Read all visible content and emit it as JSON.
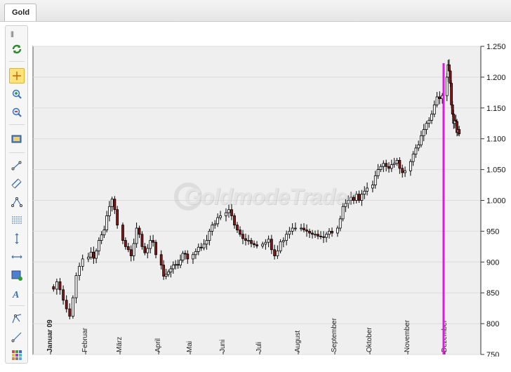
{
  "tab": {
    "label": "Gold"
  },
  "colors": {
    "up": "#ffffff",
    "down": "#8b1414",
    "wick": "#000000",
    "marker": "#e018e0",
    "plot_bg": "#efefef",
    "grid": "#dcdcdc"
  },
  "watermark": {
    "text": "GoldmodeTrader"
  },
  "toolbar": {
    "tools": [
      "refresh-icon",
      "crosshair-icon",
      "zoom-in-icon",
      "zoom-out-icon",
      "screenshot-icon",
      "trendline-icon",
      "channel-icon",
      "triangle-icon",
      "fibonacci-icon",
      "vertical-line-icon",
      "horizontal-line-icon",
      "rectangle-icon",
      "text-icon",
      "pitchfork-icon",
      "ray-icon",
      "palette-icon"
    ],
    "active": "crosshair-icon"
  },
  "chart_data": {
    "type": "candlestick",
    "y_axis": {
      "ticks": [
        "1.250",
        "1.200",
        "1.150",
        "1.100",
        "1.050",
        "1.000",
        "950",
        "900",
        "850",
        "800",
        "750"
      ],
      "position": "right"
    },
    "x_axis": {
      "labels": [
        "Januar 09",
        "Februar",
        "März",
        "April",
        "Mai",
        "Juni",
        "Juli",
        "August",
        "September",
        "Oktober",
        "November",
        "Dezember"
      ],
      "bold_label": "Januar 09"
    },
    "grid": true,
    "marker_line": {
      "x_label": "Dezember"
    },
    "series": [
      {
        "m": 0,
        "close": [
          856,
          868,
          855,
          838,
          824,
          812,
          842,
          878,
          893,
          905
        ]
      },
      {
        "m": 1,
        "close": [
          908,
          916,
          906,
          918,
          935,
          944,
          952,
          975,
          990,
          1002,
          985,
          960
        ]
      },
      {
        "m": 2,
        "close": [
          935,
          925,
          920,
          910,
          930,
          955,
          945,
          925,
          915,
          922,
          935,
          932,
          912
        ]
      },
      {
        "m": 3,
        "close": [
          895,
          877,
          880,
          884,
          889,
          895,
          896,
          895,
          903,
          914,
          913,
          905
        ]
      },
      {
        "m": 4,
        "close": [
          912,
          917,
          924,
          923,
          929,
          935,
          950,
          960,
          962,
          972,
          975
        ]
      },
      {
        "m": 5,
        "close": [
          980,
          985,
          975,
          960,
          952,
          945,
          938,
          935,
          935,
          930,
          928,
          926
        ]
      },
      {
        "m": 6,
        "close": [
          929,
          932,
          937,
          920,
          910,
          918,
          933,
          935,
          945,
          950,
          955,
          955
        ]
      },
      {
        "m": 7,
        "close": [
          955,
          952,
          950,
          947,
          945,
          945,
          942,
          941,
          940,
          945,
          950,
          947
        ]
      },
      {
        "m": 8,
        "close": [
          955,
          970,
          990,
          995,
          1000,
          1005,
          1000,
          1010,
          1000,
          1010,
          1015,
          1020
        ]
      },
      {
        "m": 9,
        "close": [
          1025,
          1040,
          1050,
          1055,
          1060,
          1055,
          1052,
          1058,
          1060,
          1065,
          1052,
          1045,
          1048
        ]
      },
      {
        "m": 10,
        "close": [
          1063,
          1075,
          1085,
          1090,
          1105,
          1115,
          1125,
          1130,
          1140,
          1155,
          1168,
          1165,
          1170
        ]
      },
      {
        "m": 11,
        "close": [
          1200,
          1220,
          1210,
          1190,
          1155,
          1140,
          1125,
          1130,
          1128,
          1110,
          1115,
          1108
        ]
      }
    ]
  }
}
